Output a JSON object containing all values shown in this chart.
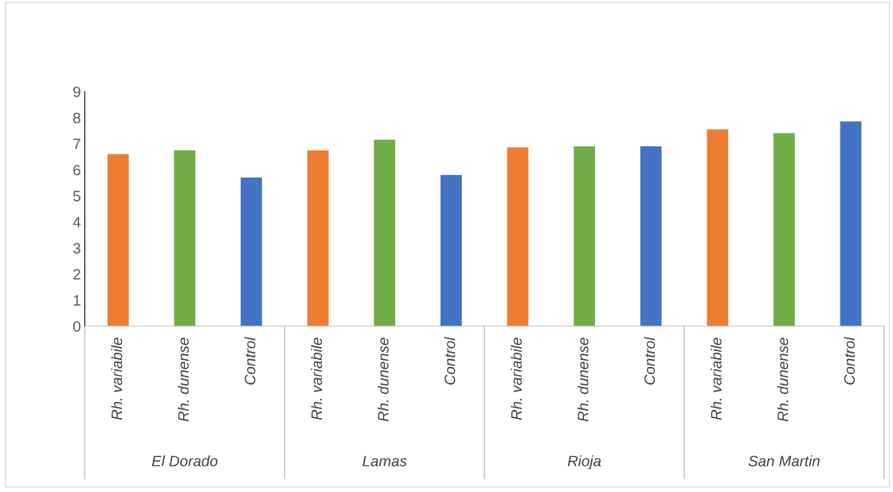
{
  "chart_data": {
    "type": "bar",
    "categories": [
      "Rh. variabile",
      "Rh. dunense",
      "Control",
      "Rh. variabile",
      "Rh. dunense",
      "Control",
      "Rh. variabile",
      "Rh. dunense",
      "Control",
      "Rh. variabile",
      "Rh. dunense",
      "Control"
    ],
    "values": [
      6.6,
      6.75,
      5.7,
      6.75,
      7.15,
      5.8,
      6.85,
      6.9,
      6.9,
      7.55,
      7.4,
      7.85
    ],
    "colors": [
      "#ed7d31",
      "#70ad47",
      "#4472c4",
      "#ed7d31",
      "#70ad47",
      "#4472c4",
      "#ed7d31",
      "#70ad47",
      "#4472c4",
      "#ed7d31",
      "#70ad47",
      "#4472c4"
    ],
    "annotations": [
      "El Dorado",
      "Lamas",
      "Rioja",
      "San Martin"
    ],
    "ylim": [
      0,
      9
    ],
    "yticks": [
      0,
      1,
      2,
      3,
      4,
      5,
      6,
      7,
      8,
      9
    ],
    "grid": false,
    "legend": false
  }
}
